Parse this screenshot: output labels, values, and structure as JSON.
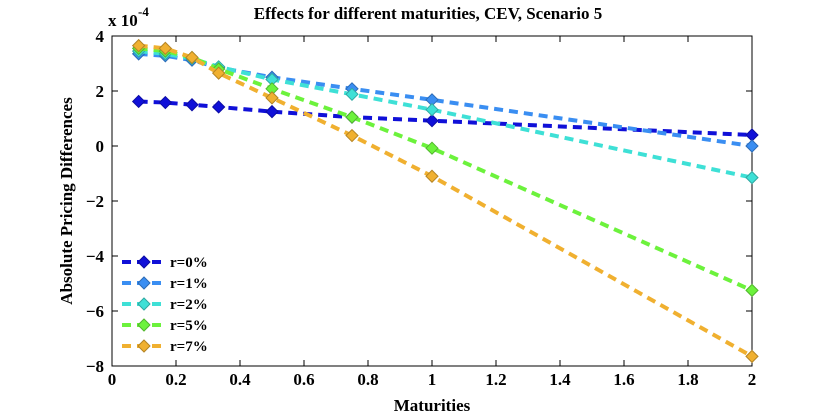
{
  "chart_data": {
    "type": "line",
    "title": "Effects for different maturities, CEV, Scenario 5",
    "xlabel": "Maturities",
    "ylabel": "Absolute Pricing Differences",
    "y_scale_base": "x 10",
    "y_scale_exponent": "-4",
    "xlim": [
      0,
      2
    ],
    "ylim": [
      -8,
      4
    ],
    "xticks": [
      0,
      0.2,
      0.4,
      0.6,
      0.8,
      1,
      1.2,
      1.4,
      1.6,
      1.8,
      2
    ],
    "xtick_labels": [
      "0",
      "0.2",
      "0.4",
      "0.6",
      "0.8",
      "1",
      "1.2",
      "1.4",
      "1.6",
      "1.8",
      "2"
    ],
    "yticks": [
      -8,
      -6,
      -4,
      -2,
      0,
      2,
      4
    ],
    "ytick_labels": [
      "−8",
      "−6",
      "−4",
      "−2",
      "0",
      "2",
      "4"
    ],
    "legend_position": "bottom-left",
    "x": [
      0.0833,
      0.1667,
      0.25,
      0.3333,
      0.5,
      0.75,
      1,
      2
    ],
    "series": [
      {
        "name": "r=0%",
        "color": "#1010d8",
        "marker": "diamond",
        "line": "dashed",
        "values": [
          1.62,
          1.58,
          1.5,
          1.42,
          1.25,
          1.05,
          0.92,
          0.4
        ]
      },
      {
        "name": "r=1%",
        "color": "#3a8ef2",
        "marker": "diamond",
        "line": "dashed",
        "values": [
          3.35,
          3.28,
          3.12,
          2.85,
          2.5,
          2.08,
          1.68,
          0.0
        ]
      },
      {
        "name": "r=2%",
        "color": "#3ee0d6",
        "marker": "diamond",
        "line": "dashed",
        "values": [
          3.45,
          3.35,
          3.18,
          2.88,
          2.42,
          1.88,
          1.32,
          -1.15
        ]
      },
      {
        "name": "r=5%",
        "color": "#6cf23c",
        "marker": "diamond",
        "line": "dashed",
        "values": [
          3.55,
          3.45,
          3.22,
          2.8,
          2.08,
          1.05,
          -0.08,
          -5.25
        ]
      },
      {
        "name": "r=7%",
        "color": "#f0b030",
        "marker": "diamond",
        "line": "dashed",
        "values": [
          3.65,
          3.55,
          3.22,
          2.65,
          1.75,
          0.38,
          -1.1,
          -7.65
        ]
      }
    ]
  }
}
